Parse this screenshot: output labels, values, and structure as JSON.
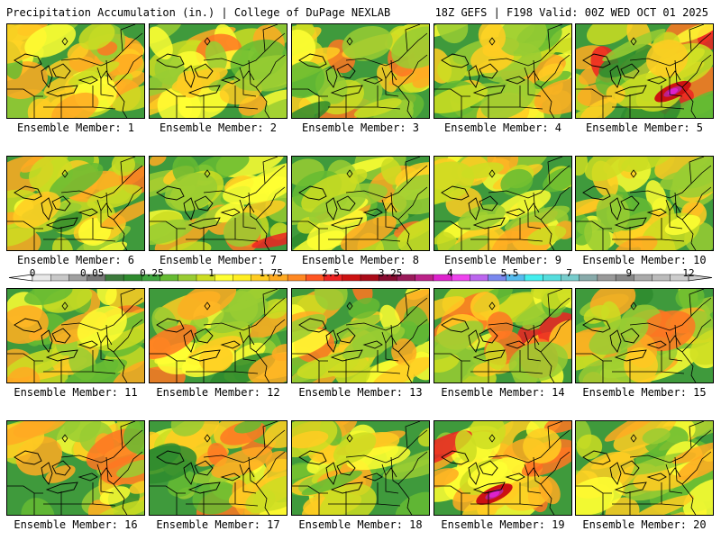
{
  "header": {
    "title": "Precipitation Accumulation (in.) | College of DuPage NEXLAB",
    "run_info": "18Z GEFS | F198 Valid: 00Z WED OCT 01 2025"
  },
  "members": [
    {
      "label": "Ensemble Member: 1",
      "seed": 11,
      "intensity": 0.45
    },
    {
      "label": "Ensemble Member: 2",
      "seed": 23,
      "intensity": 0.55
    },
    {
      "label": "Ensemble Member: 3",
      "seed": 37,
      "intensity": 0.55
    },
    {
      "label": "Ensemble Member: 4",
      "seed": 41,
      "intensity": 0.35
    },
    {
      "label": "Ensemble Member: 5",
      "seed": 53,
      "intensity": 0.9
    },
    {
      "label": "Ensemble Member: 6",
      "seed": 67,
      "intensity": 0.7
    },
    {
      "label": "Ensemble Member: 7",
      "seed": 71,
      "intensity": 0.75
    },
    {
      "label": "Ensemble Member: 8",
      "seed": 83,
      "intensity": 0.55
    },
    {
      "label": "Ensemble Member: 9",
      "seed": 97,
      "intensity": 0.6
    },
    {
      "label": "Ensemble Member: 10",
      "seed": 101,
      "intensity": 0.5
    },
    {
      "label": "Ensemble Member: 11",
      "seed": 113,
      "intensity": 0.4
    },
    {
      "label": "Ensemble Member: 12",
      "seed": 127,
      "intensity": 0.55
    },
    {
      "label": "Ensemble Member: 13",
      "seed": 131,
      "intensity": 0.6
    },
    {
      "label": "Ensemble Member: 14",
      "seed": 149,
      "intensity": 0.65
    },
    {
      "label": "Ensemble Member: 15",
      "seed": 151,
      "intensity": 0.55
    },
    {
      "label": "Ensemble Member: 16",
      "seed": 163,
      "intensity": 0.55
    },
    {
      "label": "Ensemble Member: 17",
      "seed": 173,
      "intensity": 0.7
    },
    {
      "label": "Ensemble Member: 18",
      "seed": 181,
      "intensity": 0.35
    },
    {
      "label": "Ensemble Member: 19",
      "seed": 191,
      "intensity": 0.85
    },
    {
      "label": "Ensemble Member: 20",
      "seed": 199,
      "intensity": 0.4
    }
  ],
  "legend": {
    "units": "in.",
    "tick_labels": [
      "0",
      "0.05",
      "0.25",
      "1",
      "1.75",
      "2.5",
      "3.25",
      "4",
      "5.5",
      "7",
      "9",
      "12"
    ],
    "colors": [
      "#e8e8e8",
      "#c8c8c8",
      "#a0a0a0",
      "#787878",
      "#3c7a3c",
      "#2e8b2e",
      "#3fa63f",
      "#66bb33",
      "#99cc33",
      "#ccdd22",
      "#ffff33",
      "#ffee22",
      "#ffcc22",
      "#ffaa22",
      "#ff8822",
      "#ff5522",
      "#ee2222",
      "#cc1111",
      "#aa0a18",
      "#880a30",
      "#9a1a5a",
      "#bb2288",
      "#dd22cc",
      "#ee44ee",
      "#bb66ee",
      "#7a88ee",
      "#55bbee",
      "#44eeee",
      "#55dddd",
      "#77cccc",
      "#88aaaa",
      "#999999",
      "#888888",
      "#aaaaaa",
      "#bbbbbb",
      "#cccccc"
    ]
  }
}
